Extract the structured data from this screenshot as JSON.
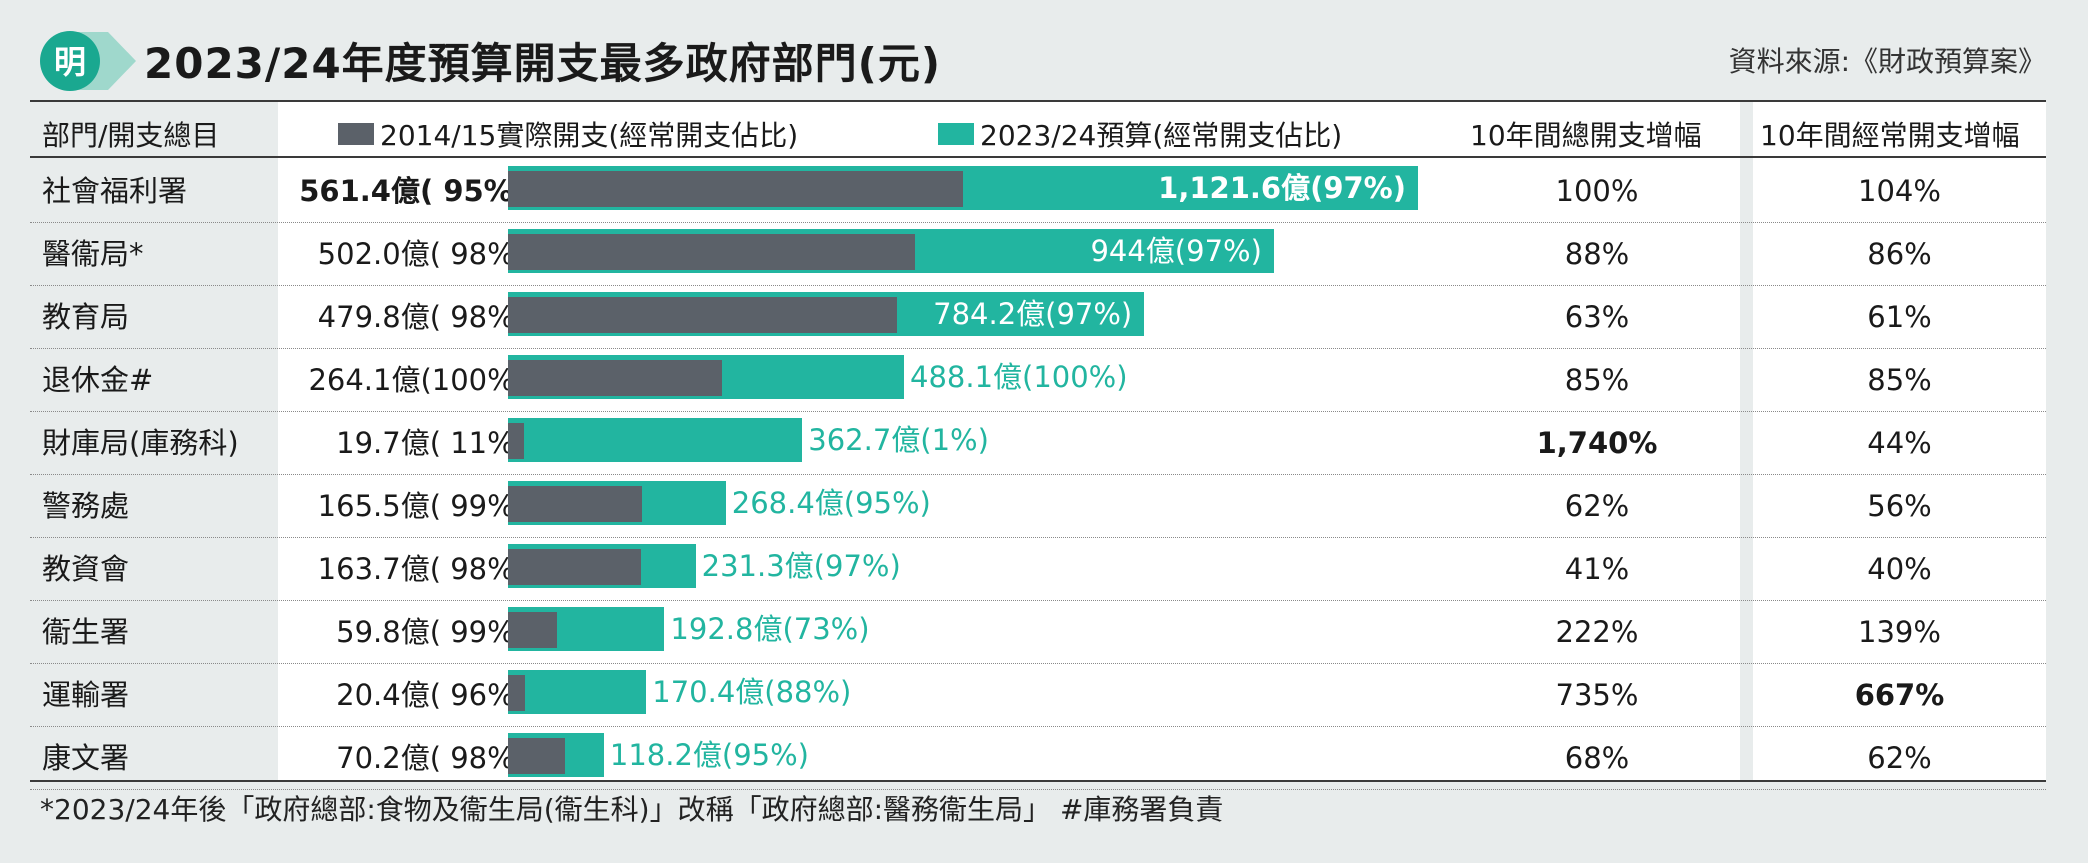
{
  "header": {
    "title": "2023/24年度預算開支最多政府部門(元)",
    "source": "資料來源:《財政預算案》",
    "logo_text": "明"
  },
  "colors": {
    "old_bar": "#5b6169",
    "new_bar": "#22b5a0"
  },
  "columns": {
    "dept": "部門/開支總目",
    "legend_old": "2014/15實際開支(經常開支佔比)",
    "legend_new": "2023/24預算(經常開支佔比)",
    "growth_total": "10年間總開支增幅",
    "growth_recurrent": "10年間經常開支增幅"
  },
  "chart_data": {
    "type": "bar",
    "unit": "億",
    "categories": [
      "社會福利署",
      "醫衞局*",
      "教育局",
      "退休金#",
      "財庫局(庫務科)",
      "警務處",
      "教資會",
      "衞生署",
      "運輸署",
      "康文署"
    ],
    "series": [
      {
        "name": "2014/15實際開支(經常開支佔比)",
        "values": [
          561.4,
          502.0,
          479.8,
          264.1,
          19.7,
          165.5,
          163.7,
          59.8,
          20.4,
          70.2
        ],
        "labels": [
          "561.4億( 95%)",
          "502.0億( 98%)",
          "479.8億( 98%)",
          "264.1億(100%)",
          "19.7億( 11%)",
          "165.5億( 99%)",
          "163.7億( 98%)",
          "59.8億( 99%)",
          "20.4億( 96%)",
          "70.2億( 98%)"
        ]
      },
      {
        "name": "2023/24預算(經常開支佔比)",
        "values": [
          1121.6,
          944,
          784.2,
          488.1,
          362.7,
          268.4,
          231.3,
          192.8,
          170.4,
          118.2
        ],
        "labels": [
          "1,121.6億(97%)",
          "944億(97%)",
          "784.2億(97%)",
          "488.1億(100%)",
          "362.7億(1%)",
          "268.4億(95%)",
          "231.3億(97%)",
          "192.8億(73%)",
          "170.4億(88%)",
          "118.2億(95%)"
        ]
      }
    ],
    "growth_total": [
      "100%",
      "88%",
      "63%",
      "85%",
      "1,740%",
      "62%",
      "41%",
      "222%",
      "735%",
      "68%"
    ],
    "growth_recurrent": [
      "104%",
      "86%",
      "61%",
      "85%",
      "44%",
      "56%",
      "40%",
      "139%",
      "667%",
      "62%"
    ],
    "highlights": {
      "bold_old_row": 0,
      "bold_growth_total_row": 4,
      "bold_growth_recurrent_row": 8
    },
    "xlim": [
      0,
      1121.6
    ]
  },
  "footnote": "*2023/24年後「政府總部:食物及衞生局(衞生科)」改稱「政府總部:醫務衞生局」 #庫務署負責"
}
